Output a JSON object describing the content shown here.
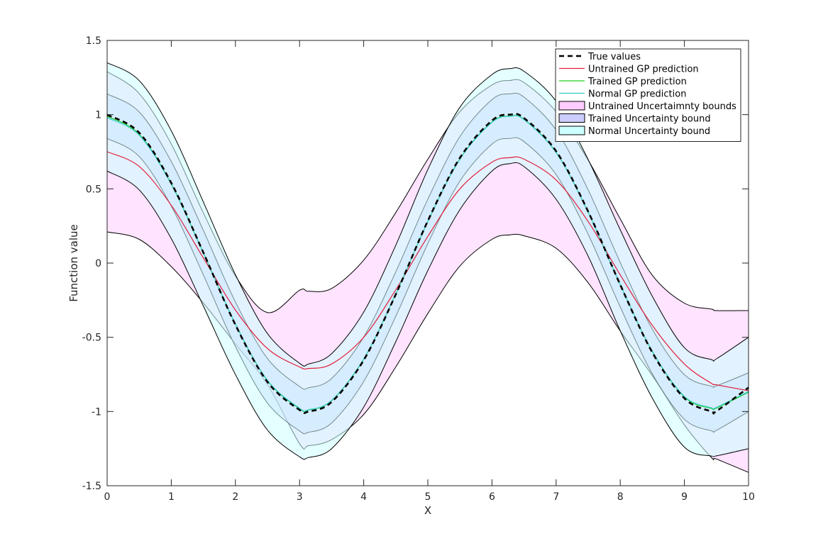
{
  "chart_data": {
    "type": "line",
    "xlabel": "X",
    "ylabel": "Function value",
    "xlim": [
      0,
      10
    ],
    "ylim": [
      -1.5,
      1.5
    ],
    "xticks": [
      "0",
      "1",
      "2",
      "3",
      "4",
      "5",
      "6",
      "7",
      "8",
      "9",
      "10"
    ],
    "yticks": [
      "-1.5",
      "-1",
      "-0.5",
      "0",
      "0.5",
      "1",
      "1.5"
    ],
    "legend_position": "top-right",
    "x": [
      0,
      0.5,
      1,
      1.5,
      2,
      2.5,
      3,
      3.14,
      3.5,
      4,
      4.5,
      5,
      5.5,
      6,
      6.28,
      6.5,
      7,
      7.5,
      8,
      8.5,
      9,
      9.42,
      9.5,
      10
    ],
    "series": [
      {
        "name": "True values",
        "kind": "line",
        "color": "#000000",
        "dashed": true,
        "values": [
          1.0,
          0.878,
          0.54,
          0.071,
          -0.416,
          -0.801,
          -0.99,
          -1.0,
          -0.936,
          -0.654,
          -0.211,
          0.284,
          0.709,
          0.96,
          1.0,
          0.977,
          0.754,
          0.347,
          -0.146,
          -0.602,
          -0.911,
          -1.0,
          -0.997,
          -0.839
        ]
      },
      {
        "name": "Untrained GP prediction",
        "kind": "line",
        "color": "#e0203a",
        "values": [
          0.75,
          0.651,
          0.389,
          0.035,
          -0.316,
          -0.576,
          -0.7,
          -0.71,
          -0.68,
          -0.5,
          -0.18,
          0.18,
          0.5,
          0.68,
          0.71,
          0.7,
          0.56,
          0.28,
          -0.08,
          -0.42,
          -0.68,
          -0.81,
          -0.82,
          -0.86
        ]
      },
      {
        "name": "Trained GP prediction",
        "kind": "line",
        "color": "#22cc22",
        "values": [
          0.99,
          0.868,
          0.534,
          0.07,
          -0.412,
          -0.793,
          -0.981,
          -0.99,
          -0.927,
          -0.648,
          -0.209,
          0.281,
          0.702,
          0.951,
          0.99,
          0.968,
          0.746,
          0.343,
          -0.146,
          -0.596,
          -0.902,
          -0.98,
          -0.977,
          -0.87
        ]
      },
      {
        "name": "Normal GP prediction",
        "kind": "line",
        "color": "#33cccc",
        "values": [
          0.98,
          0.862,
          0.53,
          0.068,
          -0.41,
          -0.79,
          -0.978,
          -0.988,
          -0.925,
          -0.646,
          -0.208,
          0.28,
          0.7,
          0.948,
          0.988,
          0.966,
          0.744,
          0.342,
          -0.146,
          -0.594,
          -0.898,
          -0.975,
          -0.972,
          -0.865
        ]
      }
    ],
    "bands": [
      {
        "name": "Untrained Uncertaimnty bounds",
        "color": "#ffccff",
        "upper": [
          1.29,
          1.142,
          0.802,
          0.338,
          -0.087,
          -0.333,
          -0.183,
          -0.19,
          -0.171,
          0.02,
          0.34,
          0.7,
          1.02,
          1.2,
          1.23,
          1.216,
          1.02,
          0.693,
          0.297,
          -0.082,
          -0.27,
          -0.31,
          -0.32,
          -0.32
        ],
        "lower": [
          0.21,
          0.16,
          -0.024,
          -0.269,
          -0.545,
          -0.819,
          -1.217,
          -1.23,
          -1.189,
          -1.02,
          -0.7,
          -0.34,
          -0.02,
          0.16,
          0.19,
          0.184,
          0.1,
          -0.133,
          -0.457,
          -0.758,
          -1.09,
          -1.31,
          -1.32,
          -1.41
        ]
      },
      {
        "name": "Trained Uncertainty bound",
        "color": "#ccccff",
        "upper": [
          1.14,
          1.018,
          0.684,
          0.22,
          -0.262,
          -0.643,
          -0.831,
          -0.84,
          -0.777,
          -0.498,
          -0.059,
          0.431,
          0.852,
          1.101,
          1.14,
          1.118,
          0.896,
          0.493,
          0.004,
          -0.446,
          -0.752,
          -0.83,
          -0.827,
          -0.74
        ],
        "lower": [
          0.84,
          0.718,
          0.384,
          -0.08,
          -0.562,
          -0.943,
          -1.131,
          -1.14,
          -1.077,
          -0.798,
          -0.359,
          0.131,
          0.552,
          0.801,
          0.84,
          0.818,
          0.596,
          0.193,
          -0.296,
          -0.746,
          -1.052,
          -1.13,
          -1.127,
          -1.0
        ]
      },
      {
        "name": "Normal Uncertainty bound",
        "color": "#ccffff",
        "upper": [
          1.35,
          1.229,
          0.891,
          0.412,
          -0.078,
          -0.475,
          -0.675,
          -0.68,
          -0.61,
          -0.33,
          0.12,
          0.63,
          1.05,
          1.27,
          1.31,
          1.292,
          1.09,
          0.697,
          0.224,
          -0.224,
          -0.57,
          -0.65,
          -0.645,
          -0.5
        ],
        "lower": [
          0.62,
          0.493,
          0.165,
          -0.289,
          -0.751,
          -1.125,
          -1.305,
          -1.31,
          -1.25,
          -0.97,
          -0.53,
          -0.05,
          0.36,
          0.62,
          0.67,
          0.65,
          0.43,
          0.046,
          -0.456,
          -0.91,
          -1.24,
          -1.3,
          -1.299,
          -1.25
        ]
      }
    ]
  }
}
